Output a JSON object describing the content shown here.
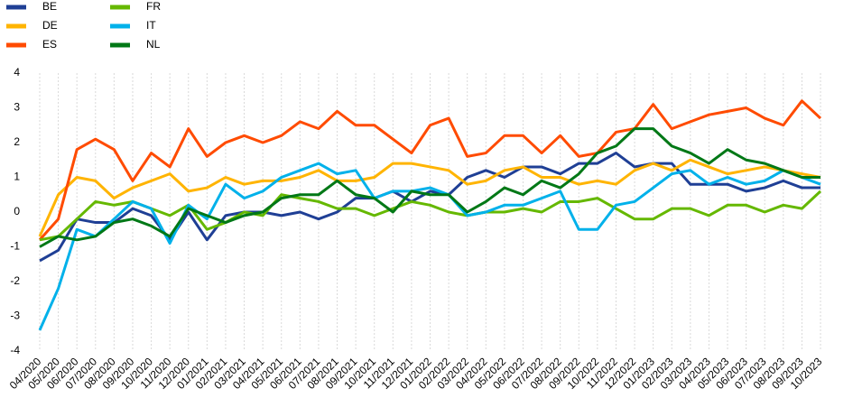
{
  "chart_data": {
    "type": "line",
    "categories": [
      "04/2020",
      "05/2020",
      "06/2020",
      "07/2020",
      "08/2020",
      "09/2020",
      "10/2020",
      "11/2020",
      "12/2020",
      "01/2021",
      "02/2021",
      "03/2021",
      "04/2021",
      "05/2021",
      "06/2021",
      "07/2021",
      "08/2021",
      "09/2021",
      "10/2021",
      "11/2021",
      "12/2021",
      "01/2022",
      "02/2022",
      "03/2022",
      "04/2022",
      "05/2022",
      "06/2022",
      "07/2022",
      "08/2022",
      "09/2022",
      "10/2022",
      "11/2022",
      "12/2022",
      "01/2023",
      "02/2023",
      "03/2023",
      "04/2023",
      "05/2023",
      "06/2023",
      "07/2023",
      "08/2023",
      "09/2023",
      "10/2023"
    ],
    "series": [
      {
        "name": "BE",
        "color": "#1f3f95",
        "values": [
          -1.4,
          -1.1,
          -0.2,
          -0.3,
          -0.3,
          0.1,
          -0.1,
          -0.8,
          0.0,
          -0.8,
          -0.1,
          0.0,
          0.0,
          -0.1,
          0.0,
          -0.2,
          0.0,
          0.4,
          0.4,
          0.6,
          0.3,
          0.6,
          0.5,
          1.0,
          1.2,
          1.0,
          1.3,
          1.3,
          1.1,
          1.4,
          1.4,
          1.7,
          1.3,
          1.4,
          1.4,
          0.8,
          0.8,
          0.8,
          0.6,
          0.7,
          0.9,
          0.7,
          0.7
        ]
      },
      {
        "name": "DE",
        "color": "#ffb400",
        "values": [
          -0.7,
          0.5,
          1.0,
          0.9,
          0.4,
          0.7,
          0.9,
          1.1,
          0.6,
          0.7,
          1.0,
          0.8,
          0.9,
          0.9,
          1.0,
          1.2,
          0.9,
          0.9,
          1.0,
          1.4,
          1.4,
          1.3,
          1.2,
          0.8,
          0.9,
          1.2,
          1.3,
          1.0,
          1.0,
          0.8,
          0.9,
          0.8,
          1.2,
          1.4,
          1.2,
          1.5,
          1.3,
          1.1,
          1.2,
          1.3,
          1.2,
          1.1,
          1.0
        ]
      },
      {
        "name": "ES",
        "color": "#ff4b00",
        "values": [
          -0.8,
          -0.2,
          1.8,
          2.1,
          1.8,
          0.9,
          1.7,
          1.3,
          2.4,
          1.6,
          2.0,
          2.2,
          2.0,
          2.2,
          2.6,
          2.4,
          2.9,
          2.5,
          2.5,
          2.1,
          1.7,
          2.5,
          2.7,
          1.6,
          1.7,
          2.2,
          2.2,
          1.7,
          2.2,
          1.6,
          1.7,
          2.3,
          2.4,
          3.1,
          2.4,
          2.6,
          2.8,
          2.9,
          3.0,
          2.7,
          2.5,
          3.2,
          2.7
        ]
      },
      {
        "name": "FR",
        "color": "#65b800",
        "values": [
          -0.8,
          -0.7,
          -0.2,
          0.3,
          0.2,
          0.3,
          0.1,
          -0.1,
          0.2,
          -0.5,
          -0.3,
          0.0,
          -0.1,
          0.5,
          0.4,
          0.3,
          0.1,
          0.1,
          -0.1,
          0.1,
          0.3,
          0.2,
          0.0,
          -0.1,
          0.0,
          0.0,
          0.1,
          0.0,
          0.3,
          0.3,
          0.4,
          0.1,
          -0.2,
          -0.2,
          0.1,
          0.1,
          -0.1,
          0.2,
          0.2,
          0.0,
          0.2,
          0.1,
          0.6
        ]
      },
      {
        "name": "IT",
        "color": "#00b1ea",
        "values": [
          -3.4,
          -2.2,
          -0.5,
          -0.7,
          -0.2,
          0.3,
          0.1,
          -0.9,
          0.2,
          -0.2,
          0.8,
          0.4,
          0.6,
          1.0,
          1.2,
          1.4,
          1.1,
          1.2,
          0.4,
          0.6,
          0.6,
          0.7,
          0.5,
          -0.1,
          0.0,
          0.2,
          0.2,
          0.4,
          0.6,
          -0.5,
          -0.5,
          0.2,
          0.3,
          0.7,
          1.1,
          1.2,
          0.8,
          1.0,
          0.8,
          0.9,
          1.2,
          1.0,
          0.8
        ]
      },
      {
        "name": "NL",
        "color": "#007816",
        "values": [
          -1.0,
          -0.7,
          -0.8,
          -0.7,
          -0.3,
          -0.2,
          -0.4,
          -0.7,
          0.1,
          -0.1,
          -0.3,
          -0.1,
          0.0,
          0.4,
          0.5,
          0.5,
          0.9,
          0.5,
          0.4,
          0.0,
          0.6,
          0.5,
          0.5,
          0.0,
          0.3,
          0.7,
          0.5,
          0.9,
          0.7,
          1.1,
          1.7,
          1.9,
          2.4,
          2.4,
          1.9,
          1.7,
          1.4,
          1.8,
          1.5,
          1.4,
          1.2,
          1.0,
          1.0
        ]
      }
    ],
    "ylim": [
      -4,
      4
    ],
    "yticks": [
      -4,
      -3,
      -2,
      -1,
      0,
      1,
      2,
      3,
      4
    ],
    "grid": true
  }
}
